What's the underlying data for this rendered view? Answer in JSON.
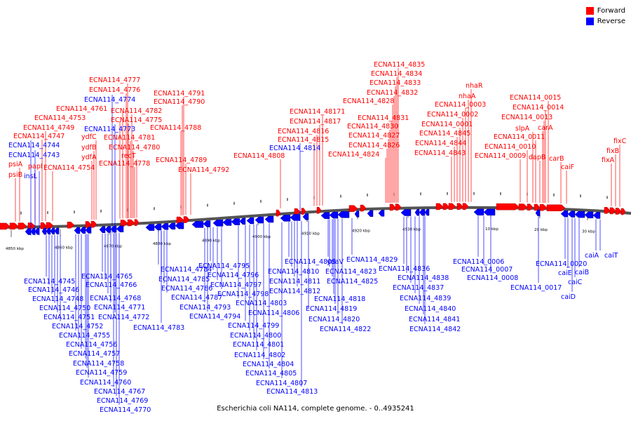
{
  "legend": {
    "forward_label": "Forward",
    "reverse_label": "Reverse",
    "forward_color": "#ff0000",
    "reverse_color": "#0000ff"
  },
  "caption": "Escherichia coli NA114, complete genome. - 0..4935241",
  "axis_ticks": [
    "4850 kbp",
    "4860 kbp",
    "4870 kbp",
    "4880 kbp",
    "4890 kbp",
    "4900 kbp",
    "4910 kbp",
    "4920 kbp",
    "4930 kbp",
    "10 kbp",
    "20 kbp",
    "30 kbp"
  ],
  "forward_labels": [
    "ECNA114_4777",
    "ECNA114_4776",
    "ECNA114_4761",
    "ECNA114_4753",
    "ECNA114_4749",
    "ECNA114_4747",
    "psiA",
    "psiB",
    "papI",
    "ECNA114_4754",
    "ECNA114_4782",
    "ECNA114_4775",
    "ECNA114_4781",
    "ECNA114_4780",
    "recT",
    "ECNA114_4778",
    "ydfC",
    "ydfB",
    "ydfA",
    "ECNA114_4791",
    "ECNA114_4790",
    "ECNA114_4788",
    "ECNA114_4789",
    "ECNA114_4792",
    "ECNA114_4808",
    "ECNA114_48171",
    "ECNA114_4817",
    "ECNA114_4816",
    "ECNA114_4815",
    "ECNA114_4835",
    "ECNA114_4834",
    "ECNA114_4833",
    "ECNA114_4832",
    "ECNA114_4828",
    "ECNA114_4831",
    "ECNA114_4830",
    "ECNA114_4827",
    "ECNA114_4826",
    "ECNA114_4824",
    "nhaR",
    "nhaA",
    "ECNA114_0003",
    "ECNA114_0002",
    "ECNA114_0001",
    "ECNA114_4845",
    "ECNA114_4844",
    "ECNA114_4843",
    "ECNA114_0015",
    "ECNA114_0014",
    "ECNA114_0013",
    "slpA",
    "carA",
    "ECNA114_0011",
    "ECNA114_0010",
    "ECNA114_0009",
    "dapB",
    "carB",
    "caiF",
    "fixC",
    "fixB",
    "fixA"
  ],
  "reverse_labels": [
    "ECNA114_4774",
    "ECNA114_4773",
    "ECNA114_4744",
    "ECNA114_4743",
    "insL",
    "ECNA114_4814",
    "ECNA114_4745",
    "ECNA114_4746",
    "ECNA114_4748",
    "ECNA114_4750",
    "ECNA114_4751",
    "ECNA114_4752",
    "ECNA114_4755",
    "ECNA114_4756",
    "ECNA114_4757",
    "ECNA114_4758",
    "ECNA114_4759",
    "ECNA114_4760",
    "ECNA114_4767",
    "ECNA114_4769",
    "ECNA114_4770",
    "ECNA114_4765",
    "ECNA114_4766",
    "ECNA114_4768",
    "ECNA114_4771",
    "ECNA114_4772",
    "ECNA114_4784",
    "ECNA114_4785",
    "ECNA114_4786",
    "ECNA114_4787",
    "ECNA114_4783",
    "ECNA114_4793",
    "ECNA114_4794",
    "ECNA114_4795",
    "ECNA114_4796",
    "ECNA114_4797",
    "ECNA114_4798",
    "ECNA114_4803",
    "ECNA114_4799",
    "ECNA114_4800",
    "ECNA114_4801",
    "ECNA114_4802",
    "ECNA114_4804",
    "ECNA114_4805",
    "ECNA114_4807",
    "ECNA114_4813",
    "ECNA114_4809",
    "ECNA114_4810",
    "ECNA114_4811",
    "ECNA114_4812",
    "ECNA114_4806",
    "ydaV",
    "ECNA114_4823",
    "ECNA114_4825",
    "ECNA114_4818",
    "ECNA114_4819",
    "ECNA114_4820",
    "ECNA114_4822",
    "ECNA114_4829",
    "ECNA114_4836",
    "ECNA114_4838",
    "ECNA114_4837",
    "ECNA114_4839",
    "ECNA114_4840",
    "ECNA114_4841",
    "ECNA114_4842",
    "ECNA114_0006",
    "ECNA114_0007",
    "ECNA114_0008",
    "ECNA114_0017",
    "ECNA114_0020",
    "caiE",
    "caiD",
    "caiC",
    "caiB",
    "caiA",
    "caiT"
  ]
}
